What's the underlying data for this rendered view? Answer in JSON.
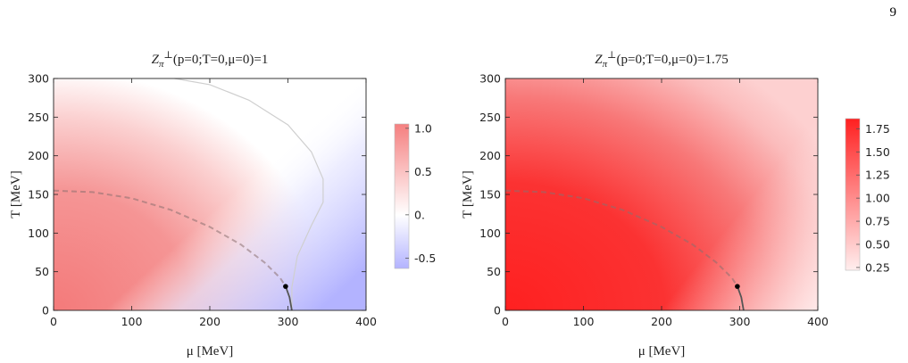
{
  "page_number": "9",
  "chart_data": [
    {
      "type": "heatmap",
      "title": {
        "symbol": "Z",
        "subscript": "π",
        "superscript": "⊥",
        "condition": "(p=0;T=0,μ=0)=1"
      },
      "xlabel": "μ [MeV]",
      "ylabel": "T [MeV]",
      "xlim": [
        0,
        400
      ],
      "ylim": [
        0,
        300
      ],
      "xticks": [
        0,
        100,
        200,
        300,
        400
      ],
      "yticks": [
        0,
        50,
        100,
        150,
        200,
        250,
        300
      ],
      "colorbar": {
        "range": [
          -0.62,
          1.05
        ],
        "ticks": [
          1.0,
          0.5,
          0.0,
          -0.5
        ],
        "tick_labels": [
          "1.0",
          "0.5",
          "0.",
          "-0.5"
        ],
        "colors": {
          "low": "#b3b3ff",
          "mid": "#ffffff",
          "high": "#f57f7f"
        }
      },
      "zero_contour": [
        [
          155,
          300
        ],
        [
          200,
          292
        ],
        [
          250,
          272
        ],
        [
          300,
          240
        ],
        [
          330,
          205
        ],
        [
          345,
          170
        ],
        [
          345,
          140
        ],
        [
          330,
          110
        ],
        [
          312,
          70
        ],
        [
          305,
          30
        ],
        [
          305,
          0
        ]
      ],
      "crossover_line": [
        [
          0,
          155
        ],
        [
          50,
          153
        ],
        [
          100,
          145
        ],
        [
          150,
          130
        ],
        [
          200,
          108
        ],
        [
          240,
          85
        ],
        [
          270,
          62
        ],
        [
          290,
          42
        ],
        [
          297,
          31
        ]
      ],
      "first_order_line": [
        [
          297,
          31
        ],
        [
          302,
          17
        ],
        [
          305,
          0
        ]
      ],
      "critical_point": {
        "mu": 297,
        "T": 31
      }
    },
    {
      "type": "heatmap",
      "title": {
        "symbol": "Z",
        "subscript": "π",
        "superscript": "⊥",
        "condition": "(p=0;T=0,μ=0)=1.75"
      },
      "xlabel": "μ [MeV]",
      "ylabel": "T [MeV]",
      "xlim": [
        0,
        400
      ],
      "ylim": [
        0,
        300
      ],
      "xticks": [
        0,
        100,
        200,
        300,
        400
      ],
      "yticks": [
        0,
        50,
        100,
        150,
        200,
        250,
        300
      ],
      "colorbar": {
        "range": [
          0.22,
          1.86
        ],
        "ticks": [
          1.75,
          1.5,
          1.25,
          1.0,
          0.75,
          0.5,
          0.25
        ],
        "tick_labels": [
          "1.75",
          "1.50",
          "1.25",
          "1.00",
          "0.75",
          "0.50",
          "0.25"
        ],
        "colors": {
          "low": "#ffeeee",
          "high": "#ff2020"
        }
      },
      "crossover_line": [
        [
          0,
          155
        ],
        [
          50,
          153
        ],
        [
          100,
          145
        ],
        [
          150,
          130
        ],
        [
          200,
          108
        ],
        [
          240,
          85
        ],
        [
          270,
          62
        ],
        [
          290,
          42
        ],
        [
          297,
          31
        ]
      ],
      "first_order_line": [
        [
          297,
          31
        ],
        [
          302,
          17
        ],
        [
          305,
          0
        ]
      ],
      "critical_point": {
        "mu": 297,
        "T": 31
      }
    }
  ]
}
